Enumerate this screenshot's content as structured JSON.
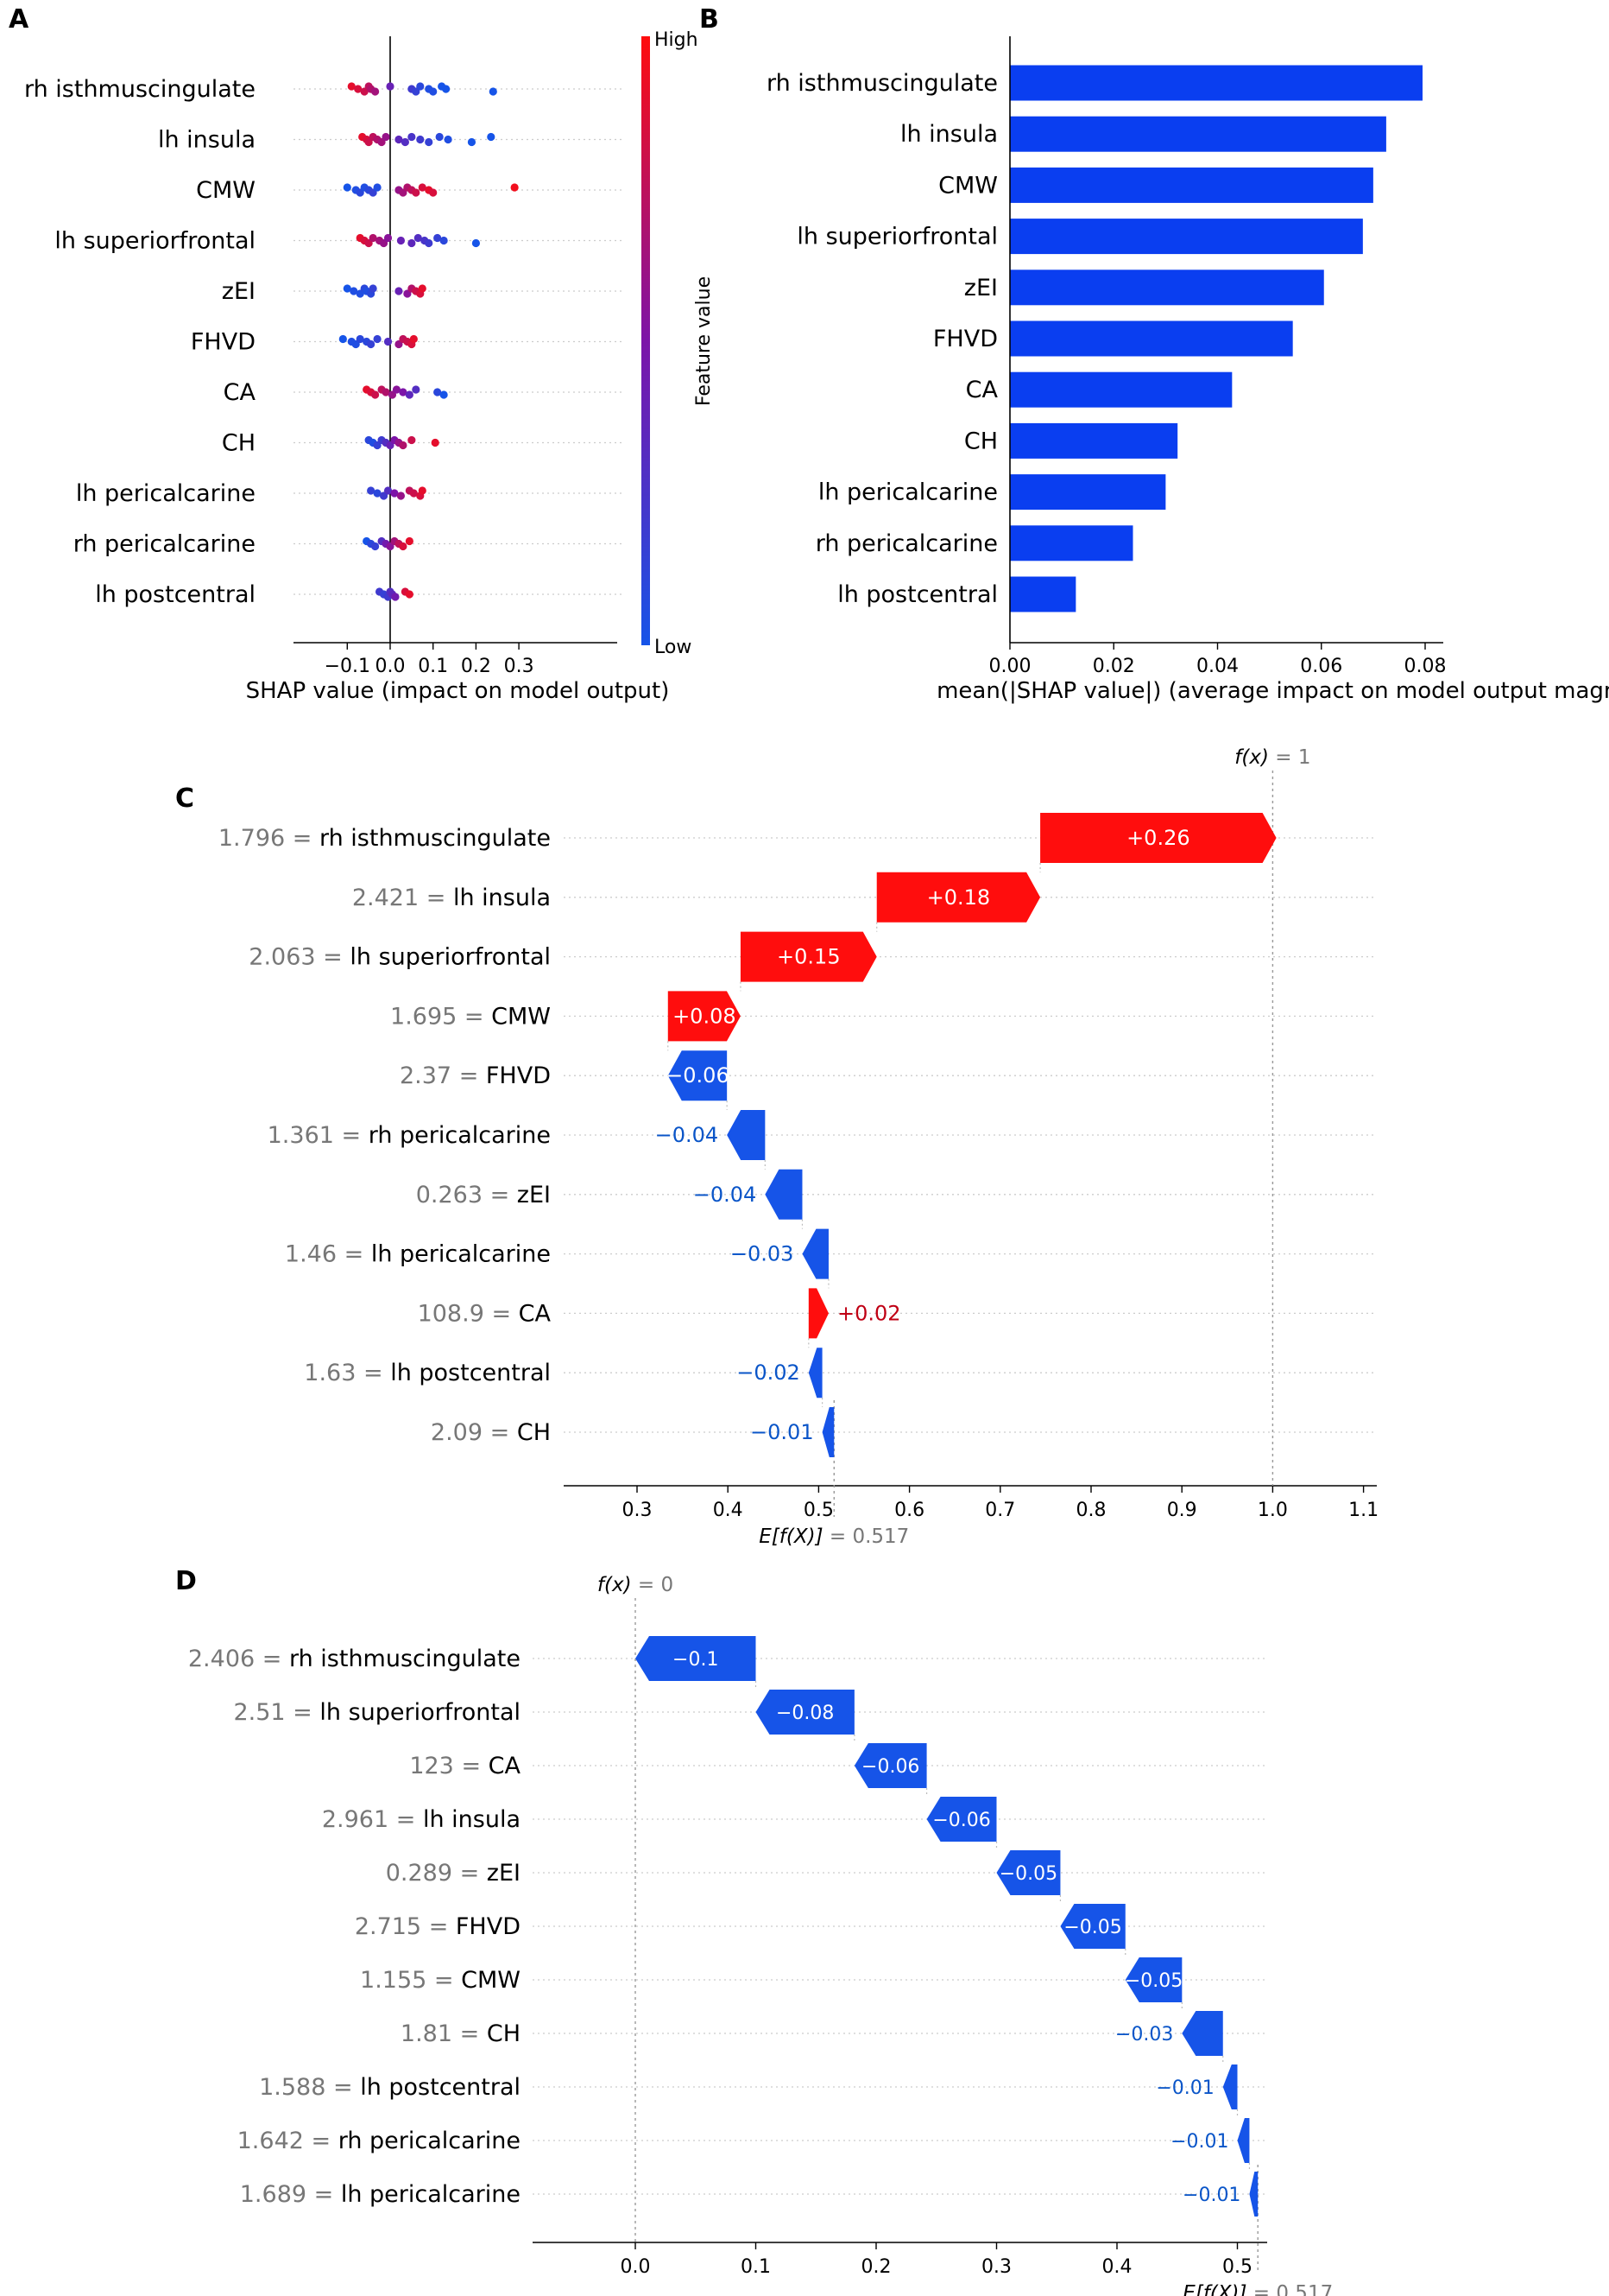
{
  "colors": {
    "positive": "#ff0d0d",
    "negative": "#1654e8",
    "bar_blue": "#0a3ef0",
    "pos_text": "#c00014",
    "neg_text": "#0a55c8",
    "feature_value_gray": "#777777"
  },
  "chart_data": [
    {
      "panel": "A",
      "type": "scatter",
      "subtype": "shap-beeswarm",
      "xlabel": "SHAP value (impact on model output)",
      "xlim": [
        -0.125,
        0.32
      ],
      "xticks": [
        "−0.1",
        "0.0",
        "0.1",
        "0.2",
        "0.3"
      ],
      "colorbar": {
        "label": "Feature value",
        "high": "High",
        "low": "Low"
      },
      "features": [
        {
          "name": "rh isthmuscingulate",
          "points": [
            [
              -0.09,
              0.9
            ],
            [
              -0.075,
              0.85
            ],
            [
              -0.06,
              0.8
            ],
            [
              -0.05,
              0.75
            ],
            [
              -0.045,
              0.7
            ],
            [
              -0.035,
              0.65
            ],
            [
              0.0,
              0.4
            ],
            [
              0.05,
              0.2
            ],
            [
              0.06,
              0.15
            ],
            [
              0.07,
              0.1
            ],
            [
              0.09,
              0.05
            ],
            [
              0.1,
              0.05
            ],
            [
              0.12,
              0.0
            ],
            [
              0.13,
              0.0
            ],
            [
              0.24,
              0.0
            ]
          ]
        },
        {
          "name": "lh insula",
          "points": [
            [
              -0.065,
              0.9
            ],
            [
              -0.055,
              0.85
            ],
            [
              -0.05,
              0.8
            ],
            [
              -0.04,
              0.75
            ],
            [
              -0.03,
              0.7
            ],
            [
              -0.02,
              0.65
            ],
            [
              -0.01,
              0.6
            ],
            [
              0.02,
              0.35
            ],
            [
              0.035,
              0.3
            ],
            [
              0.05,
              0.25
            ],
            [
              0.07,
              0.2
            ],
            [
              0.09,
              0.15
            ],
            [
              0.115,
              0.1
            ],
            [
              0.135,
              0.05
            ],
            [
              0.19,
              0.0
            ],
            [
              0.235,
              0.0
            ]
          ]
        },
        {
          "name": "CMW",
          "points": [
            [
              -0.1,
              0.0
            ],
            [
              -0.08,
              0.05
            ],
            [
              -0.07,
              0.1
            ],
            [
              -0.06,
              0.05
            ],
            [
              -0.05,
              0.1
            ],
            [
              -0.04,
              0.15
            ],
            [
              -0.03,
              0.05
            ],
            [
              0.02,
              0.6
            ],
            [
              0.03,
              0.65
            ],
            [
              0.04,
              0.7
            ],
            [
              0.05,
              0.75
            ],
            [
              0.06,
              0.8
            ],
            [
              0.075,
              0.85
            ],
            [
              0.09,
              0.9
            ],
            [
              0.1,
              0.85
            ],
            [
              0.29,
              0.95
            ]
          ]
        },
        {
          "name": "lh superiorfrontal",
          "points": [
            [
              -0.07,
              0.9
            ],
            [
              -0.06,
              0.85
            ],
            [
              -0.05,
              0.8
            ],
            [
              -0.04,
              0.7
            ],
            [
              -0.025,
              0.65
            ],
            [
              -0.015,
              0.6
            ],
            [
              -0.005,
              0.55
            ],
            [
              0.025,
              0.4
            ],
            [
              0.05,
              0.35
            ],
            [
              0.065,
              0.3
            ],
            [
              0.08,
              0.25
            ],
            [
              0.09,
              0.2
            ],
            [
              0.11,
              0.15
            ],
            [
              0.125,
              0.1
            ],
            [
              0.2,
              0.0
            ]
          ]
        },
        {
          "name": "zEI",
          "points": [
            [
              -0.1,
              0.0
            ],
            [
              -0.085,
              0.05
            ],
            [
              -0.07,
              0.05
            ],
            [
              -0.06,
              0.1
            ],
            [
              -0.055,
              0.05
            ],
            [
              -0.045,
              0.1
            ],
            [
              -0.04,
              0.15
            ],
            [
              0.02,
              0.4
            ],
            [
              0.04,
              0.55
            ],
            [
              0.05,
              0.7
            ],
            [
              0.06,
              0.8
            ],
            [
              0.07,
              0.85
            ],
            [
              0.075,
              0.9
            ]
          ]
        },
        {
          "name": "FHVD",
          "points": [
            [
              -0.11,
              0.0
            ],
            [
              -0.09,
              0.05
            ],
            [
              -0.08,
              0.05
            ],
            [
              -0.07,
              0.1
            ],
            [
              -0.055,
              0.1
            ],
            [
              -0.045,
              0.15
            ],
            [
              -0.03,
              0.15
            ],
            [
              -0.005,
              0.3
            ],
            [
              0.02,
              0.6
            ],
            [
              0.03,
              0.75
            ],
            [
              0.04,
              0.8
            ],
            [
              0.05,
              0.85
            ],
            [
              0.055,
              0.9
            ]
          ]
        },
        {
          "name": "CA",
          "points": [
            [
              -0.055,
              0.9
            ],
            [
              -0.045,
              0.85
            ],
            [
              -0.035,
              0.8
            ],
            [
              -0.02,
              0.75
            ],
            [
              -0.01,
              0.7
            ],
            [
              0.005,
              0.6
            ],
            [
              0.015,
              0.55
            ],
            [
              0.03,
              0.5
            ],
            [
              0.045,
              0.35
            ],
            [
              0.06,
              0.3
            ],
            [
              0.11,
              0.1
            ],
            [
              0.125,
              0.0
            ]
          ]
        },
        {
          "name": "CH",
          "points": [
            [
              -0.05,
              0.1
            ],
            [
              -0.04,
              0.05
            ],
            [
              -0.03,
              0.15
            ],
            [
              -0.02,
              0.2
            ],
            [
              -0.01,
              0.3
            ],
            [
              0.0,
              0.4
            ],
            [
              0.01,
              0.5
            ],
            [
              0.02,
              0.6
            ],
            [
              0.03,
              0.7
            ],
            [
              0.05,
              0.8
            ],
            [
              0.105,
              0.9
            ]
          ]
        },
        {
          "name": "lh pericalcarine",
          "points": [
            [
              -0.045,
              0.15
            ],
            [
              -0.03,
              0.1
            ],
            [
              -0.015,
              0.2
            ],
            [
              -0.005,
              0.3
            ],
            [
              0.01,
              0.5
            ],
            [
              0.025,
              0.6
            ],
            [
              0.045,
              0.75
            ],
            [
              0.055,
              0.8
            ],
            [
              0.07,
              0.85
            ],
            [
              0.075,
              0.9
            ]
          ]
        },
        {
          "name": "rh pericalcarine",
          "points": [
            [
              -0.055,
              0.0
            ],
            [
              -0.045,
              0.1
            ],
            [
              -0.035,
              0.15
            ],
            [
              -0.02,
              0.3
            ],
            [
              -0.01,
              0.45
            ],
            [
              0.0,
              0.55
            ],
            [
              0.01,
              0.65
            ],
            [
              0.02,
              0.75
            ],
            [
              0.03,
              0.85
            ],
            [
              0.045,
              0.9
            ]
          ]
        },
        {
          "name": "lh postcentral",
          "points": [
            [
              -0.025,
              0.2
            ],
            [
              -0.015,
              0.15
            ],
            [
              -0.005,
              0.2
            ],
            [
              0.0,
              0.3
            ],
            [
              0.005,
              0.35
            ],
            [
              0.012,
              0.45
            ],
            [
              0.035,
              0.85
            ],
            [
              0.045,
              0.9
            ]
          ]
        }
      ]
    },
    {
      "panel": "B",
      "type": "bar",
      "orientation": "horizontal",
      "xlabel": "mean(|SHAP value|) (average impact on model output magnitude)",
      "xlim": [
        0,
        0.082
      ],
      "xticks": [
        "0.00",
        "0.02",
        "0.04",
        "0.06",
        "0.08"
      ],
      "categories": [
        "rh isthmuscingulate",
        "lh insula",
        "CMW",
        "lh superiorfrontal",
        "zEI",
        "FHVD",
        "CA",
        "CH",
        "lh pericalcarine",
        "rh pericalcarine",
        "lh postcentral"
      ],
      "values": [
        0.0795,
        0.0725,
        0.07,
        0.068,
        0.0605,
        0.0545,
        0.0428,
        0.0323,
        0.03,
        0.0237,
        0.0127
      ]
    },
    {
      "panel": "C",
      "type": "bar",
      "subtype": "shap-waterfall",
      "xlim": [
        0.215,
        1.125
      ],
      "xticks": [
        "0.3",
        "0.4",
        "0.5",
        "0.6",
        "0.7",
        "0.8",
        "0.9",
        "1.0",
        "1.1"
      ],
      "base_value": 0.517,
      "base_label": "E[f(X)]",
      "base_text": "= 0.517",
      "output_value": 1,
      "output_label": "f(x)",
      "output_text": "= 1",
      "rows": [
        {
          "fval": "1.796",
          "name": "rh isthmuscingulate",
          "value": 0.26,
          "text": "+0.26"
        },
        {
          "fval": "2.421",
          "name": "lh insula",
          "value": 0.18,
          "text": "+0.18"
        },
        {
          "fval": "2.063",
          "name": "lh superiorfrontal",
          "value": 0.15,
          "text": "+0.15"
        },
        {
          "fval": "1.695",
          "name": "CMW",
          "value": 0.08,
          "text": "+0.08"
        },
        {
          "fval": "2.37",
          "name": "FHVD",
          "value": -0.065,
          "text": "−0.06"
        },
        {
          "fval": "1.361",
          "name": "rh pericalcarine",
          "value": -0.042,
          "text": "−0.04"
        },
        {
          "fval": "0.263",
          "name": "zEI",
          "value": -0.041,
          "text": "−0.04"
        },
        {
          "fval": "1.46",
          "name": "lh pericalcarine",
          "value": -0.029,
          "text": "−0.03"
        },
        {
          "fval": "108.9",
          "name": "CA",
          "value": 0.022,
          "text": "+0.02"
        },
        {
          "fval": "1.63",
          "name": "lh postcentral",
          "value": -0.015,
          "text": "−0.02"
        },
        {
          "fval": "2.09",
          "name": "CH",
          "value": -0.013,
          "text": "−0.01"
        }
      ]
    },
    {
      "panel": "D",
      "type": "bar",
      "subtype": "shap-waterfall",
      "xlim": [
        -0.085,
        0.56
      ],
      "xticks": [
        "0.0",
        "0.1",
        "0.2",
        "0.3",
        "0.4",
        "0.5"
      ],
      "base_value": 0.517,
      "base_label": "E[f(X)]",
      "base_text": "= 0.517",
      "output_value": 0,
      "output_label": "f(x)",
      "output_text": "= 0",
      "rows": [
        {
          "fval": "2.406",
          "name": "rh isthmuscingulate",
          "value": -0.1,
          "text": "−0.1"
        },
        {
          "fval": "2.51",
          "name": "lh superiorfrontal",
          "value": -0.082,
          "text": "−0.08"
        },
        {
          "fval": "123",
          "name": "CA",
          "value": -0.06,
          "text": "−0.06"
        },
        {
          "fval": "2.961",
          "name": "lh insula",
          "value": -0.058,
          "text": "−0.06"
        },
        {
          "fval": "0.289",
          "name": "zEI",
          "value": -0.053,
          "text": "−0.05"
        },
        {
          "fval": "2.715",
          "name": "FHVD",
          "value": -0.054,
          "text": "−0.05"
        },
        {
          "fval": "1.155",
          "name": "CMW",
          "value": -0.047,
          "text": "−0.05"
        },
        {
          "fval": "1.81",
          "name": "CH",
          "value": -0.034,
          "text": "−0.03"
        },
        {
          "fval": "1.588",
          "name": "lh postcentral",
          "value": -0.012,
          "text": "−0.01"
        },
        {
          "fval": "1.642",
          "name": "rh pericalcarine",
          "value": -0.01,
          "text": "−0.01"
        },
        {
          "fval": "1.689",
          "name": "lh pericalcarine",
          "value": -0.007,
          "text": "−0.01"
        }
      ]
    }
  ],
  "panels": {
    "a": "A",
    "b": "B",
    "c": "C",
    "d": "D"
  }
}
